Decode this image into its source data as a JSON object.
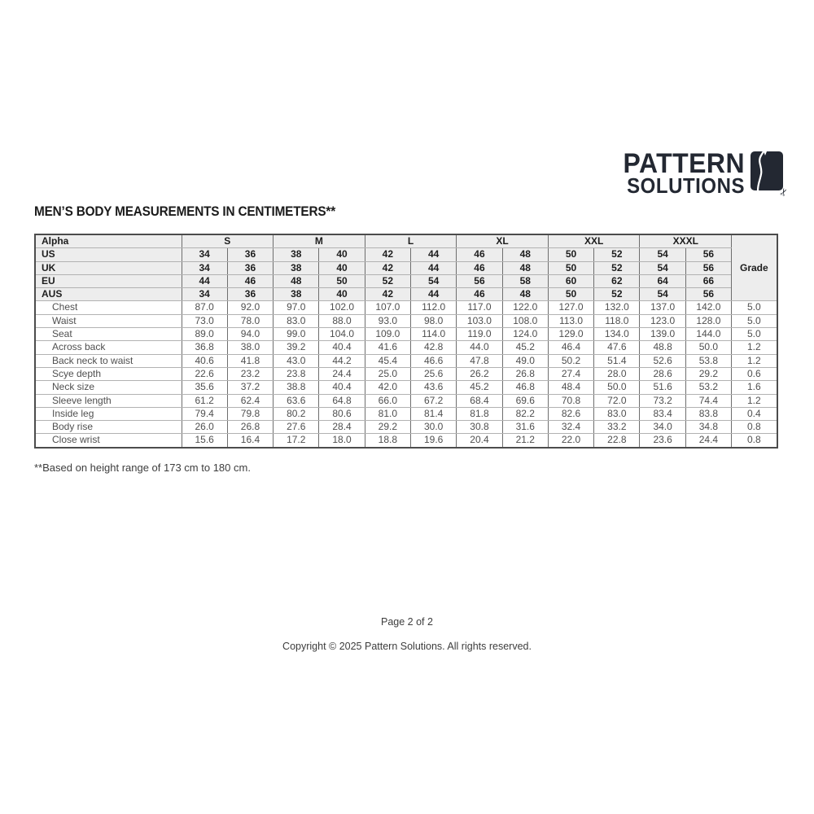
{
  "logo": {
    "line1": "PATTERN",
    "line2": "SOLUTIONS",
    "icon": "pattern-piece-with-scissors-icon",
    "scissors_glyph": "✂",
    "color": "#232832"
  },
  "title": "MEN’S BODY MEASUREMENTS IN CENTIMETERS**",
  "table": {
    "alpha_label": "Alpha",
    "grade_label": "Grade",
    "alpha_sizes": [
      "S",
      "M",
      "L",
      "XL",
      "XXL",
      "XXXL"
    ],
    "size_rows": [
      {
        "label": "US",
        "values": [
          "34",
          "36",
          "38",
          "40",
          "42",
          "44",
          "46",
          "48",
          "50",
          "52",
          "54",
          "56"
        ]
      },
      {
        "label": "UK",
        "values": [
          "34",
          "36",
          "38",
          "40",
          "42",
          "44",
          "46",
          "48",
          "50",
          "52",
          "54",
          "56"
        ]
      },
      {
        "label": "EU",
        "values": [
          "44",
          "46",
          "48",
          "50",
          "52",
          "54",
          "56",
          "58",
          "60",
          "62",
          "64",
          "66"
        ]
      },
      {
        "label": "AUS",
        "values": [
          "34",
          "36",
          "38",
          "40",
          "42",
          "44",
          "46",
          "48",
          "50",
          "52",
          "54",
          "56"
        ]
      }
    ],
    "measurement_rows": [
      {
        "label": "Chest",
        "values": [
          "87.0",
          "92.0",
          "97.0",
          "102.0",
          "107.0",
          "112.0",
          "117.0",
          "122.0",
          "127.0",
          "132.0",
          "137.0",
          "142.0"
        ],
        "grade": "5.0"
      },
      {
        "label": "Waist",
        "values": [
          "73.0",
          "78.0",
          "83.0",
          "88.0",
          "93.0",
          "98.0",
          "103.0",
          "108.0",
          "113.0",
          "118.0",
          "123.0",
          "128.0"
        ],
        "grade": "5.0"
      },
      {
        "label": "Seat",
        "values": [
          "89.0",
          "94.0",
          "99.0",
          "104.0",
          "109.0",
          "114.0",
          "119.0",
          "124.0",
          "129.0",
          "134.0",
          "139.0",
          "144.0"
        ],
        "grade": "5.0"
      },
      {
        "label": "Across back",
        "values": [
          "36.8",
          "38.0",
          "39.2",
          "40.4",
          "41.6",
          "42.8",
          "44.0",
          "45.2",
          "46.4",
          "47.6",
          "48.8",
          "50.0"
        ],
        "grade": "1.2"
      },
      {
        "label": "Back neck to waist",
        "values": [
          "40.6",
          "41.8",
          "43.0",
          "44.2",
          "45.4",
          "46.6",
          "47.8",
          "49.0",
          "50.2",
          "51.4",
          "52.6",
          "53.8"
        ],
        "grade": "1.2"
      },
      {
        "label": "Scye depth",
        "values": [
          "22.6",
          "23.2",
          "23.8",
          "24.4",
          "25.0",
          "25.6",
          "26.2",
          "26.8",
          "27.4",
          "28.0",
          "28.6",
          "29.2"
        ],
        "grade": "0.6"
      },
      {
        "label": "Neck size",
        "values": [
          "35.6",
          "37.2",
          "38.8",
          "40.4",
          "42.0",
          "43.6",
          "45.2",
          "46.8",
          "48.4",
          "50.0",
          "51.6",
          "53.2"
        ],
        "grade": "1.6"
      },
      {
        "label": "Sleeve length",
        "values": [
          "61.2",
          "62.4",
          "63.6",
          "64.8",
          "66.0",
          "67.2",
          "68.4",
          "69.6",
          "70.8",
          "72.0",
          "73.2",
          "74.4"
        ],
        "grade": "1.2"
      },
      {
        "label": "Inside leg",
        "values": [
          "79.4",
          "79.8",
          "80.2",
          "80.6",
          "81.0",
          "81.4",
          "81.8",
          "82.2",
          "82.6",
          "83.0",
          "83.4",
          "83.8"
        ],
        "grade": "0.4"
      },
      {
        "label": "Body rise",
        "values": [
          "26.0",
          "26.8",
          "27.6",
          "28.4",
          "29.2",
          "30.0",
          "30.8",
          "31.6",
          "32.4",
          "33.2",
          "34.0",
          "34.8"
        ],
        "grade": "0.8"
      },
      {
        "label": "Close wrist",
        "values": [
          "15.6",
          "16.4",
          "17.2",
          "18.0",
          "18.8",
          "19.6",
          "20.4",
          "21.2",
          "22.0",
          "22.8",
          "23.6",
          "24.4"
        ],
        "grade": "0.8"
      }
    ]
  },
  "footnote": "**Based on height range of 173 cm to 180 cm.",
  "footer": {
    "page": "Page 2 of 2",
    "copyright": "Copyright © 2025 Pattern Solutions. All rights reserved."
  }
}
